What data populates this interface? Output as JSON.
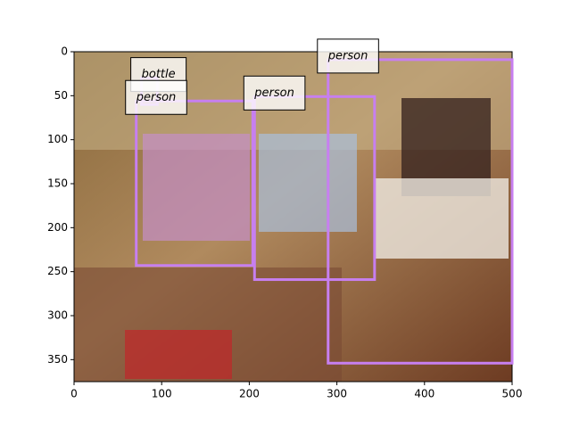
{
  "chart_data": {
    "type": "image-detections",
    "xlim": [
      0,
      500
    ],
    "ylim": [
      375,
      0
    ],
    "xticks": [
      0,
      100,
      200,
      300,
      400,
      500
    ],
    "yticks": [
      0,
      50,
      100,
      150,
      200,
      250,
      300,
      350
    ],
    "box_color": "#c77ff0",
    "boxes": [
      {
        "label": "bottle",
        "x0": 77,
        "y0": 30,
        "x1": 95,
        "y1": 60
      },
      {
        "label": "person",
        "x0": 71,
        "y0": 56,
        "x1": 204,
        "y1": 243
      },
      {
        "label": "person",
        "x0": 206,
        "y0": 51,
        "x1": 343,
        "y1": 259
      },
      {
        "label": "person",
        "x0": 290,
        "y0": 9,
        "x1": 500,
        "y1": 354
      }
    ]
  }
}
